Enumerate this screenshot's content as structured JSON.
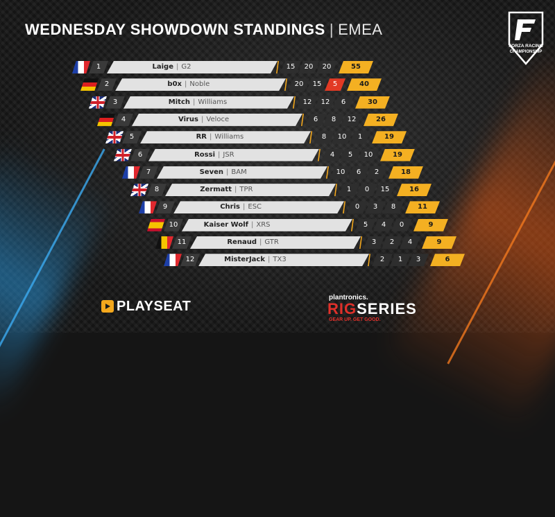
{
  "header": {
    "title": "WEDNESDAY SHOWDOWN STANDINGS",
    "separator": "|",
    "region": "EMEA"
  },
  "forza_logo": {
    "line1": "FORZA RACING",
    "line2": "CHAMPIONSHIP",
    "icon": "forza-shield-icon"
  },
  "colors": {
    "accent": "#f4b022",
    "highlight": "#e23a24",
    "name_bar": "#e2e2e2",
    "glow_orange": "#e65a14",
    "glow_blue": "#2896dc"
  },
  "standings": [
    {
      "pos": "1",
      "flag": "fr",
      "driver": "Laige",
      "team": "G2",
      "r1": "15",
      "r2": "20",
      "r3": "20",
      "total": "55"
    },
    {
      "pos": "2",
      "flag": "de",
      "driver": "b0x",
      "team": "Noble",
      "r1": "20",
      "r2": "15",
      "r3": "5",
      "total": "40"
    },
    {
      "pos": "3",
      "flag": "gb",
      "driver": "Mitch",
      "team": "Williams",
      "r1": "12",
      "r2": "12",
      "r3": "6",
      "total": "30"
    },
    {
      "pos": "4",
      "flag": "de",
      "driver": "Virus",
      "team": "Veloce",
      "r1": "6",
      "r2": "8",
      "r3": "12",
      "total": "26"
    },
    {
      "pos": "5",
      "flag": "gb",
      "driver": "RR",
      "team": "Williams",
      "r1": "8",
      "r2": "10",
      "r3": "1",
      "total": "19"
    },
    {
      "pos": "6",
      "flag": "gb",
      "driver": "Rossi",
      "team": "JSR",
      "r1": "4",
      "r2": "5",
      "r3": "10",
      "total": "19"
    },
    {
      "pos": "7",
      "flag": "fr",
      "driver": "Seven",
      "team": "BAM",
      "r1": "10",
      "r2": "6",
      "r3": "2",
      "total": "18"
    },
    {
      "pos": "8",
      "flag": "gb",
      "driver": "Zermatt",
      "team": "TPR",
      "r1": "1",
      "r2": "0",
      "r3": "15",
      "total": "16"
    },
    {
      "pos": "9",
      "flag": "fr",
      "driver": "Chris",
      "team": "ESC",
      "r1": "0",
      "r2": "3",
      "r3": "8",
      "total": "11"
    },
    {
      "pos": "10",
      "flag": "es",
      "driver": "Kaiser Wolf",
      "team": "XRS",
      "r1": "5",
      "r2": "4",
      "r3": "0",
      "total": "9"
    },
    {
      "pos": "11",
      "flag": "be",
      "driver": "Renaud",
      "team": "GTR",
      "r1": "3",
      "r2": "2",
      "r3": "4",
      "total": "9"
    },
    {
      "pos": "12",
      "flag": "fr",
      "driver": "MisterJack",
      "team": "TX3",
      "r1": "2",
      "r2": "1",
      "r3": "3",
      "total": "6"
    }
  ],
  "sponsors": {
    "playseat": "PLAYSEAT",
    "plantronics": "plantronics.",
    "rig": "RIG",
    "series": "SERIES",
    "tagline": "GEAR UP. GET GOOD."
  }
}
